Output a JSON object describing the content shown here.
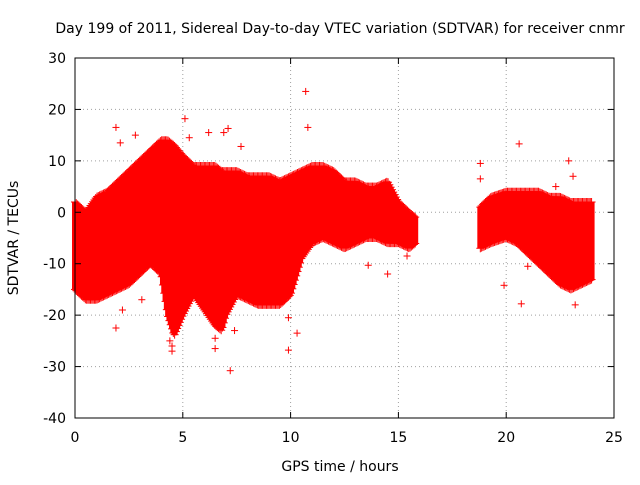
{
  "chart_data": {
    "type": "scatter",
    "title": "Day 199 of 2011, Sidereal Day-to-day VTEC variation (SDTVAR) for receiver cnmr",
    "xlabel": "GPS time / hours",
    "ylabel": "SDTVAR / TECUs",
    "xlim": [
      0,
      25
    ],
    "ylim": [
      -40,
      30
    ],
    "xticks": [
      0,
      5,
      10,
      15,
      20,
      25
    ],
    "yticks": [
      -40,
      -30,
      -20,
      -10,
      0,
      10,
      20,
      30
    ],
    "grid": true,
    "marker": "+",
    "color": "#ff0000",
    "series": [
      {
        "name": "SDTVAR",
        "note": "dense per-time min/max envelope of all satellite tracks",
        "envelope": [
          {
            "x": 0.0,
            "lo": -15,
            "hi": 2
          },
          {
            "x": 0.5,
            "lo": -17,
            "hi": 0
          },
          {
            "x": 1.0,
            "lo": -17,
            "hi": 3
          },
          {
            "x": 1.5,
            "lo": -16,
            "hi": 4
          },
          {
            "x": 2.0,
            "lo": -15,
            "hi": 6
          },
          {
            "x": 2.5,
            "lo": -14,
            "hi": 8
          },
          {
            "x": 3.0,
            "lo": -12,
            "hi": 10
          },
          {
            "x": 3.5,
            "lo": -10,
            "hi": 12
          },
          {
            "x": 4.0,
            "lo": -12,
            "hi": 14
          },
          {
            "x": 4.3,
            "lo": -20,
            "hi": 14
          },
          {
            "x": 4.6,
            "lo": -24,
            "hi": 13
          },
          {
            "x": 5.0,
            "lo": -20,
            "hi": 11
          },
          {
            "x": 5.5,
            "lo": -16,
            "hi": 9
          },
          {
            "x": 6.0,
            "lo": -19,
            "hi": 9
          },
          {
            "x": 6.5,
            "lo": -22,
            "hi": 9
          },
          {
            "x": 6.8,
            "lo": -23,
            "hi": 8
          },
          {
            "x": 7.0,
            "lo": -20,
            "hi": 8
          },
          {
            "x": 7.5,
            "lo": -16,
            "hi": 8
          },
          {
            "x": 8.0,
            "lo": -17,
            "hi": 7
          },
          {
            "x": 8.5,
            "lo": -18,
            "hi": 7
          },
          {
            "x": 9.0,
            "lo": -18,
            "hi": 7
          },
          {
            "x": 9.5,
            "lo": -18,
            "hi": 6
          },
          {
            "x": 10.0,
            "lo": -16,
            "hi": 7
          },
          {
            "x": 10.5,
            "lo": -9,
            "hi": 8
          },
          {
            "x": 11.0,
            "lo": -6,
            "hi": 9
          },
          {
            "x": 11.5,
            "lo": -5,
            "hi": 9
          },
          {
            "x": 12.0,
            "lo": -6,
            "hi": 8
          },
          {
            "x": 12.5,
            "lo": -7,
            "hi": 6
          },
          {
            "x": 13.0,
            "lo": -6,
            "hi": 6
          },
          {
            "x": 13.5,
            "lo": -5,
            "hi": 5
          },
          {
            "x": 14.0,
            "lo": -5,
            "hi": 5
          },
          {
            "x": 14.5,
            "lo": -6,
            "hi": 6
          },
          {
            "x": 15.0,
            "lo": -6,
            "hi": 2
          },
          {
            "x": 15.5,
            "lo": -7,
            "hi": 0
          },
          {
            "x": 15.8,
            "lo": -6,
            "hi": -1
          },
          {
            "x": 18.8,
            "lo": -7,
            "hi": 1
          },
          {
            "x": 19.3,
            "lo": -6,
            "hi": 3
          },
          {
            "x": 20.0,
            "lo": -5,
            "hi": 4
          },
          {
            "x": 20.5,
            "lo": -6,
            "hi": 4
          },
          {
            "x": 21.0,
            "lo": -8,
            "hi": 4
          },
          {
            "x": 21.5,
            "lo": -10,
            "hi": 4
          },
          {
            "x": 22.0,
            "lo": -12,
            "hi": 3
          },
          {
            "x": 22.5,
            "lo": -14,
            "hi": 3
          },
          {
            "x": 23.0,
            "lo": -15,
            "hi": 2
          },
          {
            "x": 23.5,
            "lo": -14,
            "hi": 2
          },
          {
            "x": 24.0,
            "lo": -13,
            "hi": 2
          }
        ],
        "outliers": [
          {
            "x": 1.9,
            "y": 16.5
          },
          {
            "x": 1.9,
            "y": -22.5
          },
          {
            "x": 2.1,
            "y": 13.5
          },
          {
            "x": 2.2,
            "y": -19
          },
          {
            "x": 2.8,
            "y": 15
          },
          {
            "x": 3.1,
            "y": -17
          },
          {
            "x": 3.3,
            "y": 10.5
          },
          {
            "x": 4.4,
            "y": -25
          },
          {
            "x": 4.5,
            "y": -26
          },
          {
            "x": 4.5,
            "y": -27
          },
          {
            "x": 5.1,
            "y": 18.2
          },
          {
            "x": 5.3,
            "y": 14.5
          },
          {
            "x": 6.2,
            "y": 15.5
          },
          {
            "x": 6.5,
            "y": -24.5
          },
          {
            "x": 6.5,
            "y": -26.5
          },
          {
            "x": 6.9,
            "y": 15.5
          },
          {
            "x": 7.1,
            "y": 16.3
          },
          {
            "x": 7.2,
            "y": -30.8
          },
          {
            "x": 7.4,
            "y": -23
          },
          {
            "x": 7.7,
            "y": 12.8
          },
          {
            "x": 9.9,
            "y": -26.8
          },
          {
            "x": 9.9,
            "y": -20.5
          },
          {
            "x": 10.3,
            "y": -23.5
          },
          {
            "x": 10.7,
            "y": 23.5
          },
          {
            "x": 10.8,
            "y": 16.5
          },
          {
            "x": 13.6,
            "y": -10.3
          },
          {
            "x": 14.5,
            "y": -12
          },
          {
            "x": 15.4,
            "y": -8.5
          },
          {
            "x": 18.8,
            "y": 9.5
          },
          {
            "x": 18.8,
            "y": 6.5
          },
          {
            "x": 19.9,
            "y": -14.2
          },
          {
            "x": 20.6,
            "y": 13.3
          },
          {
            "x": 20.7,
            "y": -17.8
          },
          {
            "x": 21.0,
            "y": -10.5
          },
          {
            "x": 22.9,
            "y": 10
          },
          {
            "x": 23.2,
            "y": -18
          },
          {
            "x": 22.3,
            "y": 5
          },
          {
            "x": 23.1,
            "y": 7
          }
        ]
      }
    ]
  }
}
